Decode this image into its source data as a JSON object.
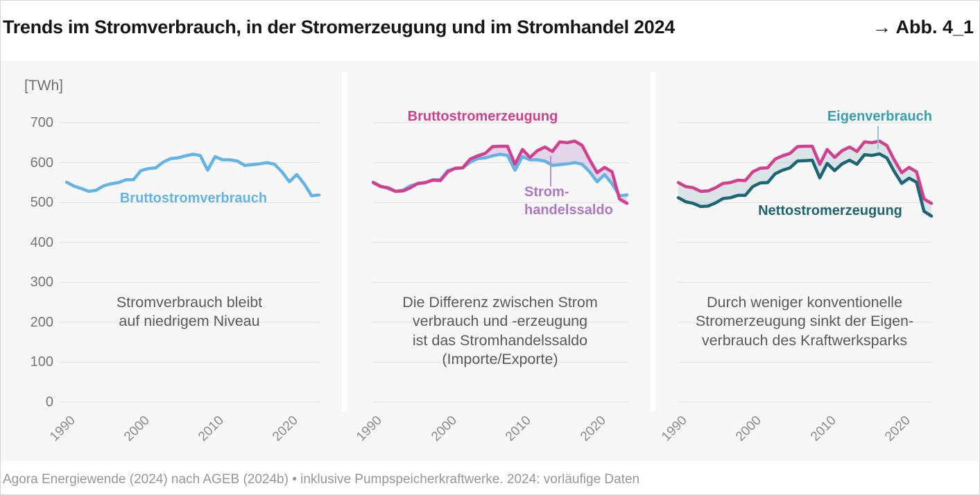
{
  "header": {
    "title": "Trends im Stromverbrauch, in der Stromerzeugung und im Stromhandel 2024",
    "figure_ref": "→ Abb. 4_1"
  },
  "footer": {
    "source": "Agora Energiewende (2024) nach AGEB (2024b) • inklusive Pumpspeicherkraftwerke. 2024: vorläufige Daten"
  },
  "colors": {
    "consumption_blue": "#64b3e4",
    "generation_pink": "#d23f8e",
    "net_teal": "#1d6474",
    "eigen_label_teal": "#369fb0",
    "saldo_label_purple": "#ad77c2",
    "saldo_fill": "rgba(173,119,194,0.26)",
    "eigen_fill": "rgba(29,100,116,0.13)",
    "saldo_pointer": "#b98fc9",
    "eigen_pointer": "#8fc6d0",
    "grid": "#e4e4e8",
    "chart_bg": "#f7f7f8"
  },
  "chart_data": {
    "type": "line",
    "unit_label": "[TWh]",
    "ylim": [
      0,
      700
    ],
    "yticks": [
      0,
      100,
      200,
      300,
      400,
      500,
      600,
      700
    ],
    "xticks": [
      1990,
      2000,
      2010,
      2020
    ],
    "years": [
      1990,
      1991,
      1992,
      1993,
      1994,
      1995,
      1996,
      1997,
      1998,
      1999,
      2000,
      2001,
      2002,
      2003,
      2004,
      2005,
      2006,
      2007,
      2008,
      2009,
      2010,
      2011,
      2012,
      2013,
      2014,
      2015,
      2016,
      2017,
      2018,
      2019,
      2020,
      2021,
      2022,
      2023,
      2024
    ],
    "series": [
      {
        "name": "Bruttostromverbrauch",
        "color": "#64b3e4",
        "values": [
          551,
          541,
          535,
          528,
          531,
          542,
          547,
          550,
          557,
          557,
          580,
          585,
          587,
          601,
          610,
          612,
          617,
          621,
          618,
          581,
          615,
          607,
          607,
          604,
          593,
          595,
          597,
          600,
          596,
          577,
          552,
          570,
          547,
          517,
          519
        ]
      },
      {
        "name": "Bruttostromerzeugung",
        "color": "#d23f8e",
        "values": [
          550,
          540,
          537,
          528,
          529,
          537,
          548,
          550,
          556,
          555,
          577,
          586,
          587,
          609,
          617,
          623,
          640,
          641,
          641,
          596,
          633,
          613,
          630,
          639,
          628,
          652,
          650,
          654,
          643,
          607,
          575,
          588,
          577,
          509,
          498
        ]
      },
      {
        "name": "Nettostromerzeugung",
        "color": "#1d6474",
        "values": [
          512,
          502,
          498,
          490,
          491,
          499,
          510,
          512,
          518,
          518,
          540,
          549,
          550,
          572,
          581,
          587,
          604,
          605,
          606,
          562,
          598,
          580,
          597,
          606,
          596,
          620,
          618,
          622,
          612,
          578,
          548,
          561,
          551,
          478,
          466
        ]
      }
    ],
    "labels": {
      "consumption": "Bruttostromverbrauch",
      "generation": "Bruttostromerzeugung",
      "saldo_line1": "Strom-",
      "saldo_line2": "handelssaldo",
      "eigen": "Eigenverbrauch",
      "netto": "Nettostromerzeugung"
    },
    "annotations": {
      "panel1": [
        "Stromverbrauch bleibt",
        "auf niedrigem Niveau"
      ],
      "panel2": [
        "Die Differenz zwischen Strom",
        "verbrauch und -erzeugung",
        "ist das Stromhandelssaldo",
        "(Importe/Exporte)"
      ],
      "panel3": [
        "Durch weniger konventionelle",
        "Stromerzeugung sinkt der Eigen-",
        "verbrauch des Kraftwerksparks"
      ]
    }
  }
}
